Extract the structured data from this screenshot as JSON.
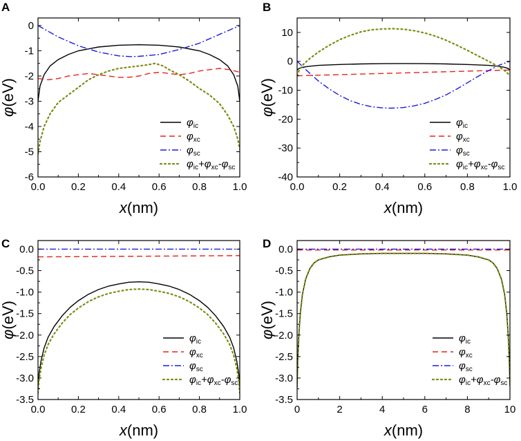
{
  "legend_labels": [
    {
      "base": "φ",
      "sub": "ic",
      "tail": ""
    },
    {
      "base": "φ",
      "sub": "xc",
      "tail": ""
    },
    {
      "base": "φ",
      "sub": "sc",
      "tail": ""
    },
    {
      "parts": [
        [
          "φ",
          "ic"
        ],
        [
          "+φ",
          "xc"
        ],
        [
          "-φ",
          "sc"
        ]
      ]
    }
  ],
  "series_styles": {
    "ic": {
      "color": "#000000",
      "dash": ""
    },
    "xc": {
      "color": "#e8201c",
      "dash": "8,5"
    },
    "sc": {
      "color": "#1a1ae0",
      "dash": "9,3,2,3"
    },
    "sum": {
      "color": "#7f8a10",
      "dash": "2,4"
    }
  },
  "chart_data": [
    {
      "panel": "A",
      "type": "line",
      "xlabel_var": "x",
      "xlabel_unit": "(nm)",
      "ylabel_var": "φ",
      "ylabel_unit": "(eV)",
      "xlim": [
        0,
        1
      ],
      "ylim": [
        -6,
        0.3
      ],
      "xticks": [
        0.0,
        0.2,
        0.4,
        0.6,
        0.8,
        1.0
      ],
      "xtick_labels": [
        "0.0",
        "0.2",
        "0.4",
        "0.6",
        "0.8",
        "1.0"
      ],
      "yticks": [
        0,
        -1,
        -2,
        -3,
        -4,
        -5,
        -6
      ],
      "ytick_labels": [
        "0",
        "-1",
        "-2",
        "-3",
        "-4",
        "-5",
        "-6"
      ],
      "legend": "bottom-right",
      "series": [
        {
          "name": "ic",
          "x": [
            0,
            0.01,
            0.03,
            0.06,
            0.1,
            0.15,
            0.2,
            0.3,
            0.4,
            0.5,
            0.6,
            0.7,
            0.8,
            0.85,
            0.9,
            0.94,
            0.97,
            0.99,
            1.0
          ],
          "values": [
            -3.0,
            -2.4,
            -1.95,
            -1.6,
            -1.35,
            -1.15,
            -1.0,
            -0.85,
            -0.78,
            -0.76,
            -0.78,
            -0.85,
            -1.0,
            -1.15,
            -1.35,
            -1.6,
            -1.95,
            -2.4,
            -3.0
          ]
        },
        {
          "name": "xc",
          "x": [
            0,
            0.05,
            0.1,
            0.15,
            0.2,
            0.25,
            0.3,
            0.35,
            0.4,
            0.45,
            0.5,
            0.55,
            0.6,
            0.65,
            0.7,
            0.75,
            0.8,
            0.85,
            0.9,
            0.95,
            1.0
          ],
          "values": [
            -2.1,
            -2.15,
            -2.1,
            -2.0,
            -1.95,
            -1.9,
            -1.95,
            -2.0,
            -2.05,
            -2.05,
            -2.0,
            -1.9,
            -1.85,
            -1.9,
            -1.95,
            -1.9,
            -1.8,
            -1.75,
            -1.7,
            -1.75,
            -1.85
          ]
        },
        {
          "name": "sc",
          "x": [
            0,
            0.1,
            0.2,
            0.3,
            0.4,
            0.46,
            0.5,
            0.6,
            0.7,
            0.8,
            0.9,
            1.0
          ],
          "values": [
            0,
            -0.45,
            -0.8,
            -1.05,
            -1.2,
            -1.23,
            -1.22,
            -1.15,
            -0.95,
            -0.7,
            -0.35,
            0
          ]
        },
        {
          "name": "sum",
          "x": [
            0,
            0.01,
            0.03,
            0.06,
            0.1,
            0.15,
            0.2,
            0.25,
            0.3,
            0.35,
            0.4,
            0.45,
            0.5,
            0.55,
            0.58,
            0.62,
            0.65,
            0.7,
            0.75,
            0.8,
            0.85,
            0.9,
            0.94,
            0.97,
            0.99,
            1.0
          ],
          "values": [
            -5.1,
            -4.6,
            -4.0,
            -3.5,
            -3.05,
            -2.75,
            -2.45,
            -2.15,
            -1.95,
            -1.8,
            -1.7,
            -1.65,
            -1.6,
            -1.55,
            -1.5,
            -1.6,
            -1.75,
            -1.95,
            -2.2,
            -2.5,
            -2.75,
            -3.1,
            -3.55,
            -4.0,
            -4.5,
            -4.9
          ]
        }
      ]
    },
    {
      "panel": "B",
      "type": "line",
      "xlabel_var": "x",
      "xlabel_unit": "(nm)",
      "ylabel_var": "φ",
      "ylabel_unit": "(eV)",
      "xlim": [
        0,
        1
      ],
      "ylim": [
        -40,
        15
      ],
      "xticks": [
        0.0,
        0.2,
        0.4,
        0.6,
        0.8,
        1.0
      ],
      "xtick_labels": [
        "0.0",
        "0.2",
        "0.4",
        "0.6",
        "0.8",
        "1.0"
      ],
      "yticks": [
        10,
        0,
        -10,
        -20,
        -30,
        -40
      ],
      "ytick_labels": [
        "10",
        "0",
        "-10",
        "-20",
        "-30",
        "-40"
      ],
      "legend": "bottom-right",
      "series": [
        {
          "name": "ic",
          "x": [
            0,
            0.01,
            0.03,
            0.06,
            0.1,
            0.2,
            0.3,
            0.4,
            0.5,
            0.6,
            0.7,
            0.8,
            0.9,
            0.94,
            0.97,
            0.99,
            1.0
          ],
          "values": [
            -3.0,
            -2.4,
            -2.0,
            -1.7,
            -1.4,
            -1.1,
            -0.9,
            -0.8,
            -0.76,
            -0.8,
            -0.9,
            -1.1,
            -1.4,
            -1.7,
            -2.0,
            -2.4,
            -3.0
          ]
        },
        {
          "name": "xc",
          "x": [
            0,
            0.1,
            0.2,
            0.3,
            0.4,
            0.5,
            0.6,
            0.7,
            0.8,
            0.9,
            1.0
          ],
          "values": [
            -5.0,
            -4.8,
            -4.6,
            -4.4,
            -4.2,
            -4.0,
            -3.8,
            -3.6,
            -3.4,
            -3.2,
            -3.0
          ]
        },
        {
          "name": "sc",
          "x": [
            0,
            0.05,
            0.1,
            0.15,
            0.2,
            0.25,
            0.3,
            0.35,
            0.4,
            0.44,
            0.5,
            0.55,
            0.6,
            0.65,
            0.7,
            0.75,
            0.8,
            0.85,
            0.9,
            0.95,
            1.0
          ],
          "values": [
            0,
            -3.5,
            -6.8,
            -9.5,
            -11.8,
            -13.6,
            -14.9,
            -15.7,
            -16.1,
            -16.2,
            -16.0,
            -15.4,
            -14.5,
            -13.2,
            -11.6,
            -9.6,
            -7.4,
            -5.2,
            -3.2,
            -1.3,
            0
          ]
        },
        {
          "name": "sum",
          "x": [
            0,
            0.01,
            0.03,
            0.06,
            0.1,
            0.15,
            0.2,
            0.25,
            0.3,
            0.35,
            0.4,
            0.45,
            0.5,
            0.55,
            0.6,
            0.65,
            0.7,
            0.75,
            0.8,
            0.85,
            0.9,
            0.94,
            0.97,
            0.99,
            1.0
          ],
          "values": [
            -5.0,
            -3.0,
            -1.0,
            1.0,
            3.2,
            5.5,
            7.5,
            9.0,
            10.2,
            10.9,
            11.2,
            11.3,
            11.1,
            10.6,
            9.8,
            8.7,
            7.3,
            5.6,
            3.8,
            1.9,
            0.0,
            -1.6,
            -2.9,
            -4.2,
            -5.0
          ]
        }
      ]
    },
    {
      "panel": "C",
      "type": "line",
      "xlabel_var": "x",
      "xlabel_unit": "(nm)",
      "ylabel_var": "φ",
      "ylabel_unit": "(eV)",
      "xlim": [
        0,
        1
      ],
      "ylim": [
        -3.5,
        0.2
      ],
      "xticks": [
        0.0,
        0.2,
        0.4,
        0.6,
        0.8,
        1.0
      ],
      "xtick_labels": [
        "0.0",
        "0.2",
        "0.4",
        "0.6",
        "0.8",
        "1.0"
      ],
      "yticks": [
        0,
        -0.5,
        -1.0,
        -1.5,
        -2.0,
        -2.5,
        -3.0,
        -3.5
      ],
      "ytick_labels": [
        "0.0",
        "-0.5",
        "-1.0",
        "-1.5",
        "-2.0",
        "-2.5",
        "-3.0",
        "-3.5"
      ],
      "legend": "bottom-right",
      "series": [
        {
          "name": "ic",
          "x": [
            0,
            0.005,
            0.015,
            0.03,
            0.05,
            0.08,
            0.12,
            0.16,
            0.2,
            0.25,
            0.3,
            0.35,
            0.4,
            0.45,
            0.5,
            0.55,
            0.6,
            0.65,
            0.7,
            0.75,
            0.8,
            0.84,
            0.88,
            0.92,
            0.95,
            0.97,
            0.985,
            0.995,
            1.0
          ],
          "values": [
            -3.2,
            -2.9,
            -2.6,
            -2.3,
            -2.05,
            -1.8,
            -1.55,
            -1.35,
            -1.2,
            -1.05,
            -0.94,
            -0.86,
            -0.81,
            -0.77,
            -0.76,
            -0.77,
            -0.81,
            -0.86,
            -0.94,
            -1.05,
            -1.2,
            -1.35,
            -1.55,
            -1.8,
            -2.05,
            -2.3,
            -2.6,
            -2.9,
            -3.2
          ]
        },
        {
          "name": "xc",
          "x": [
            0,
            1
          ],
          "values": [
            -0.18,
            -0.15
          ]
        },
        {
          "name": "sc",
          "x": [
            0,
            1
          ],
          "values": [
            0,
            0
          ]
        },
        {
          "name": "sum",
          "x": [
            0,
            0.005,
            0.015,
            0.03,
            0.05,
            0.08,
            0.12,
            0.16,
            0.2,
            0.25,
            0.3,
            0.35,
            0.4,
            0.45,
            0.5,
            0.55,
            0.6,
            0.65,
            0.7,
            0.75,
            0.8,
            0.84,
            0.88,
            0.92,
            0.95,
            0.97,
            0.985,
            0.995,
            1.0
          ],
          "values": [
            -3.35,
            -3.05,
            -2.77,
            -2.47,
            -2.22,
            -1.97,
            -1.72,
            -1.52,
            -1.37,
            -1.22,
            -1.11,
            -1.03,
            -0.98,
            -0.94,
            -0.93,
            -0.94,
            -0.98,
            -1.03,
            -1.11,
            -1.22,
            -1.37,
            -1.52,
            -1.72,
            -1.97,
            -2.22,
            -2.47,
            -2.77,
            -3.05,
            -3.35
          ]
        }
      ]
    },
    {
      "panel": "D",
      "type": "line",
      "xlabel_var": "x",
      "xlabel_unit": "(nm)",
      "ylabel_var": "φ",
      "ylabel_unit": "(eV)",
      "xlim": [
        0,
        10
      ],
      "ylim": [
        -3.5,
        0.2
      ],
      "xticks": [
        0,
        2,
        4,
        6,
        8,
        10
      ],
      "xtick_labels": [
        "0",
        "2",
        "4",
        "6",
        "8",
        "10"
      ],
      "yticks": [
        0,
        -0.5,
        -1.0,
        -1.5,
        -2.0,
        -2.5,
        -3.0,
        -3.5
      ],
      "ytick_labels": [
        "0.0",
        "-0.5",
        "-1.0",
        "-1.5",
        "-2.0",
        "-2.5",
        "-3.0",
        "-3.5"
      ],
      "legend": "bottom-right",
      "series": [
        {
          "name": "ic",
          "x": [
            0,
            0.03,
            0.08,
            0.15,
            0.25,
            0.4,
            0.6,
            0.8,
            1.0,
            1.5,
            2,
            3,
            4,
            5,
            6,
            7,
            8,
            8.5,
            9,
            9.2,
            9.4,
            9.6,
            9.75,
            9.85,
            9.92,
            9.97,
            10
          ],
          "values": [
            -3.2,
            -2.6,
            -2.0,
            -1.5,
            -1.05,
            -0.7,
            -0.45,
            -0.32,
            -0.25,
            -0.18,
            -0.14,
            -0.11,
            -0.1,
            -0.1,
            -0.1,
            -0.11,
            -0.14,
            -0.18,
            -0.25,
            -0.32,
            -0.45,
            -0.7,
            -1.05,
            -1.5,
            -2.0,
            -2.6,
            -3.2
          ]
        },
        {
          "name": "xc",
          "x": [
            0,
            10
          ],
          "values": [
            -0.02,
            -0.02
          ]
        },
        {
          "name": "sc",
          "x": [
            0,
            10
          ],
          "values": [
            0,
            0
          ]
        },
        {
          "name": "sum",
          "x": [
            0,
            0.03,
            0.08,
            0.15,
            0.25,
            0.4,
            0.6,
            0.8,
            1.0,
            1.5,
            2,
            3,
            4,
            5,
            6,
            7,
            8,
            8.5,
            9,
            9.2,
            9.4,
            9.6,
            9.75,
            9.85,
            9.92,
            9.97,
            10
          ],
          "values": [
            -3.2,
            -2.6,
            -2.0,
            -1.5,
            -1.05,
            -0.7,
            -0.45,
            -0.32,
            -0.25,
            -0.18,
            -0.14,
            -0.11,
            -0.1,
            -0.1,
            -0.1,
            -0.11,
            -0.14,
            -0.18,
            -0.25,
            -0.32,
            -0.45,
            -0.7,
            -1.05,
            -1.5,
            -2.0,
            -2.6,
            -3.2
          ]
        }
      ]
    }
  ]
}
